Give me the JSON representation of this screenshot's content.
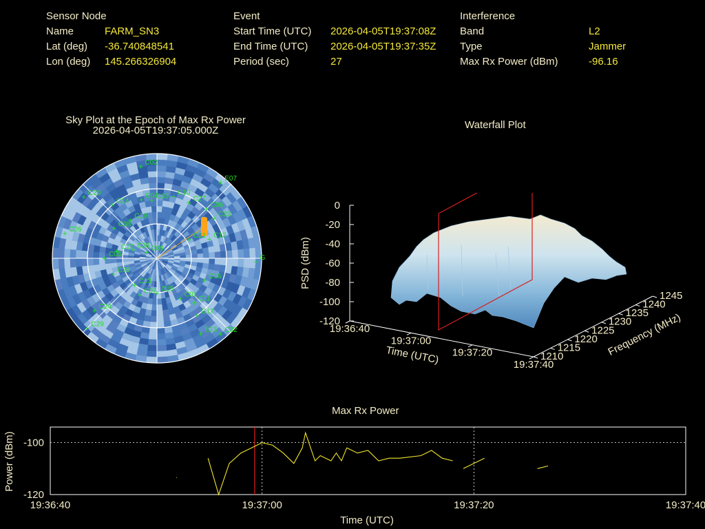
{
  "sensor": {
    "heading": "Sensor Node",
    "name_label": "Name",
    "name": "FARM_SN3",
    "lat_label": "Lat (deg)",
    "lat": "-36.740848541",
    "lon_label": "Lon (deg)",
    "lon": "145.266326904"
  },
  "event": {
    "heading": "Event",
    "start_label": "Start Time (UTC)",
    "start": "2026-04-05T19:37:08Z",
    "end_label": "End Time (UTC)",
    "end": "2026-04-05T19:37:35Z",
    "period_label": "Period (sec)",
    "period": "27"
  },
  "interference": {
    "heading": "Interference",
    "band_label": "Band",
    "band": "L2",
    "type_label": "Type",
    "type": "Jammer",
    "power_label": "Max Rx Power (dBm)",
    "power": "-96.16"
  },
  "skyplot": {
    "title1": "Sky Plot at the Epoch of Max Rx Power",
    "title2": "2026-04-05T19:37:05.000Z",
    "satellites": [
      {
        "id": "C02",
        "az": 350,
        "el": 10
      },
      {
        "id": "E07",
        "az": 40,
        "el": 5
      },
      {
        "id": "C27",
        "az": 30,
        "el": 35
      },
      {
        "id": "C20",
        "az": 310,
        "el": 8
      },
      {
        "id": "C14",
        "az": 320,
        "el": 30
      },
      {
        "id": "C08",
        "az": 305,
        "el": 45
      },
      {
        "id": "C19",
        "az": 325,
        "el": 50
      },
      {
        "id": "C04",
        "az": 345,
        "el": 38
      },
      {
        "id": "C33",
        "az": 355,
        "el": 40
      },
      {
        "id": "C10",
        "az": 15,
        "el": 35
      },
      {
        "id": "C06",
        "az": 45,
        "el": 30
      },
      {
        "id": "C23",
        "az": 55,
        "el": 30
      },
      {
        "id": "C12",
        "az": 70,
        "el": 42
      },
      {
        "id": "C21",
        "az": 60,
        "el": 58
      },
      {
        "id": "C26",
        "az": 285,
        "el": 8
      },
      {
        "id": "C05",
        "az": 270,
        "el": 45
      },
      {
        "id": "C28",
        "az": 290,
        "el": 68
      },
      {
        "id": "C17",
        "az": 280,
        "el": 55
      },
      {
        "id": "C09",
        "az": 300,
        "el": 80
      },
      {
        "id": "C13",
        "az": 220,
        "el": 60
      },
      {
        "id": "C07",
        "az": 205,
        "el": 55
      },
      {
        "id": "C24",
        "az": 230,
        "el": 20
      },
      {
        "id": "C11",
        "az": 140,
        "el": 40
      },
      {
        "id": "C01",
        "az": 150,
        "el": 50
      },
      {
        "id": "C16",
        "az": 115,
        "el": 45
      },
      {
        "id": "G26",
        "az": 92,
        "el": 5
      },
      {
        "id": "G17",
        "az": 145,
        "el": 30
      },
      {
        "id": "C29",
        "az": 225,
        "el": 5
      },
      {
        "id": "C32",
        "az": 140,
        "el": 5
      },
      {
        "id": "E13",
        "az": 150,
        "el": 15
      },
      {
        "id": "C35",
        "az": 250,
        "el": 50
      },
      {
        "id": "C25",
        "az": 180,
        "el": 60
      }
    ]
  },
  "waterfall": {
    "title": "Waterfall Plot",
    "zlabel": "PSD (dBm)",
    "xlabel": "Time (UTC)",
    "ylabel": "Frequency (MHz)",
    "zticks": [
      "0",
      "-20",
      "-40",
      "-60",
      "-80",
      "-100",
      "-120"
    ],
    "xticks": [
      "19:36:40",
      "19:37:00",
      "19:37:20",
      "19:37:40"
    ],
    "yticks": [
      "1210",
      "1215",
      "1220",
      "1225",
      "1230",
      "1235",
      "1240",
      "1245"
    ]
  },
  "chart_data": {
    "type": "line",
    "title": "Max Rx Power",
    "xlabel": "Time (UTC)",
    "ylabel": "Power (dBm)",
    "xlim": [
      0,
      60
    ],
    "ylim": [
      -120,
      -94
    ],
    "x_tick_labels": [
      "19:36:40",
      "19:37:00",
      "19:37:20",
      "19:37:40"
    ],
    "x_tick_values": [
      0,
      20,
      40,
      60
    ],
    "y_tick_labels": [
      "-100",
      "-120"
    ],
    "y_tick_values": [
      -100,
      -120
    ],
    "marker_time": 19.3,
    "segments": [
      [
        [
          11.9,
          -113.5
        ],
        [
          11.95,
          -113.4
        ]
      ],
      [
        [
          14.9,
          -106
        ],
        [
          15.9,
          -120
        ],
        [
          16.9,
          -108
        ],
        [
          18,
          -104
        ],
        [
          19,
          -102
        ],
        [
          20,
          -100
        ],
        [
          21,
          -101
        ],
        [
          22,
          -104
        ],
        [
          23,
          -108
        ],
        [
          23.8,
          -102
        ],
        [
          24.1,
          -96.2
        ],
        [
          25,
          -107
        ],
        [
          25.5,
          -105
        ],
        [
          26,
          -106
        ],
        [
          26.5,
          -107
        ],
        [
          27,
          -104
        ],
        [
          27.5,
          -107
        ],
        [
          28,
          -102
        ],
        [
          29,
          -104
        ],
        [
          30,
          -103
        ],
        [
          31,
          -107
        ],
        [
          32,
          -106
        ],
        [
          33,
          -106
        ],
        [
          35,
          -105
        ],
        [
          36,
          -103
        ],
        [
          37,
          -106
        ],
        [
          38,
          -107
        ]
      ],
      [
        [
          39,
          -110
        ],
        [
          40,
          -108
        ],
        [
          41,
          -106
        ]
      ],
      [
        [
          46,
          -110
        ],
        [
          47,
          -109
        ]
      ]
    ]
  }
}
